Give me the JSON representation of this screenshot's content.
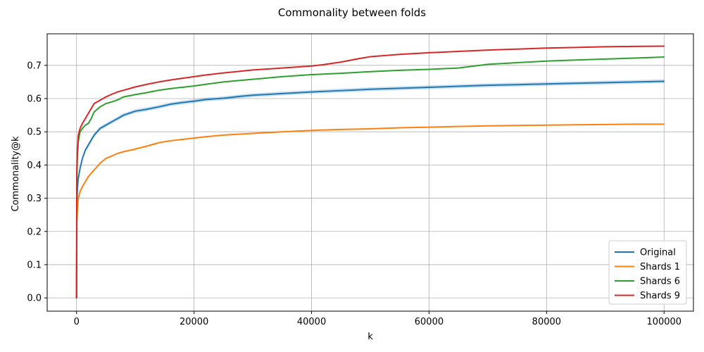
{
  "chart_data": {
    "type": "line",
    "title": "Commonality between folds",
    "xlabel": "k",
    "ylabel": "Commonality@k",
    "xlim": [
      -5000,
      105000
    ],
    "ylim": [
      -0.04,
      0.795
    ],
    "xticks": [
      0,
      20000,
      40000,
      60000,
      80000,
      100000
    ],
    "yticks": [
      0.0,
      0.1,
      0.2,
      0.3,
      0.4,
      0.5,
      0.6,
      0.7
    ],
    "ytick_labels": [
      "0.0",
      "0.1",
      "0.2",
      "0.3",
      "0.4",
      "0.5",
      "0.6",
      "0.7"
    ],
    "grid": true,
    "legend_position": "bottom-right",
    "series": [
      {
        "name": "Original",
        "color": "#1f77b4",
        "band": true,
        "x": [
          0,
          50,
          150,
          300,
          600,
          1000,
          1500,
          2000,
          3000,
          4000,
          5000,
          6000,
          7000,
          8000,
          10000,
          12000,
          14000,
          16000,
          18000,
          20000,
          22000,
          25000,
          28000,
          30000,
          35000,
          40000,
          45000,
          50000,
          55000,
          60000,
          65000,
          70000,
          75000,
          80000,
          85000,
          90000,
          95000,
          100000
        ],
        "y": [
          0,
          0.28,
          0.33,
          0.36,
          0.39,
          0.42,
          0.445,
          0.46,
          0.49,
          0.51,
          0.52,
          0.53,
          0.54,
          0.55,
          0.562,
          0.568,
          0.575,
          0.583,
          0.588,
          0.592,
          0.597,
          0.601,
          0.607,
          0.61,
          0.615,
          0.62,
          0.624,
          0.628,
          0.631,
          0.634,
          0.637,
          0.64,
          0.642,
          0.644,
          0.646,
          0.648,
          0.65,
          0.652
        ]
      },
      {
        "name": "Shards 1",
        "color": "#ff7f0e",
        "band": false,
        "x": [
          0,
          50,
          150,
          300,
          600,
          1000,
          1500,
          2000,
          3000,
          4000,
          5000,
          6000,
          7000,
          8000,
          10000,
          12000,
          14000,
          16000,
          18000,
          20000,
          22000,
          25000,
          30000,
          35000,
          40000,
          45000,
          50000,
          55000,
          60000,
          65000,
          70000,
          75000,
          80000,
          85000,
          90000,
          95000,
          100000
        ],
        "y": [
          0,
          0.23,
          0.27,
          0.3,
          0.32,
          0.335,
          0.35,
          0.365,
          0.385,
          0.405,
          0.42,
          0.427,
          0.435,
          0.44,
          0.448,
          0.457,
          0.467,
          0.473,
          0.477,
          0.481,
          0.485,
          0.49,
          0.495,
          0.5,
          0.504,
          0.507,
          0.509,
          0.512,
          0.514,
          0.516,
          0.518,
          0.519,
          0.52,
          0.521,
          0.522,
          0.523,
          0.523
        ]
      },
      {
        "name": "Shards 6",
        "color": "#2ca02c",
        "band": false,
        "x": [
          0,
          50,
          150,
          300,
          600,
          1000,
          1500,
          2000,
          2500,
          3000,
          4000,
          5000,
          6000,
          7000,
          8000,
          10000,
          12000,
          14000,
          16000,
          18000,
          20000,
          22000,
          25000,
          30000,
          35000,
          40000,
          45000,
          50000,
          55000,
          60000,
          65000,
          70000,
          75000,
          80000,
          85000,
          90000,
          95000,
          100000
        ],
        "y": [
          0,
          0.36,
          0.43,
          0.47,
          0.5,
          0.51,
          0.52,
          0.525,
          0.54,
          0.56,
          0.575,
          0.585,
          0.59,
          0.596,
          0.605,
          0.612,
          0.618,
          0.625,
          0.63,
          0.634,
          0.638,
          0.643,
          0.65,
          0.658,
          0.666,
          0.672,
          0.676,
          0.681,
          0.685,
          0.688,
          0.692,
          0.703,
          0.708,
          0.713,
          0.716,
          0.719,
          0.722,
          0.725
        ]
      },
      {
        "name": "Shards 9",
        "color": "#d62728",
        "band": false,
        "x": [
          0,
          50,
          150,
          300,
          600,
          1000,
          1500,
          2000,
          2500,
          3000,
          4000,
          5000,
          6000,
          7000,
          8000,
          10000,
          12000,
          14000,
          16000,
          18000,
          20000,
          22000,
          25000,
          30000,
          35000,
          40000,
          42000,
          45000,
          48000,
          50000,
          55000,
          60000,
          65000,
          70000,
          75000,
          80000,
          85000,
          90000,
          95000,
          100000
        ],
        "y": [
          0,
          0.38,
          0.45,
          0.49,
          0.51,
          0.525,
          0.54,
          0.555,
          0.57,
          0.585,
          0.595,
          0.605,
          0.613,
          0.62,
          0.625,
          0.635,
          0.643,
          0.65,
          0.656,
          0.661,
          0.666,
          0.671,
          0.677,
          0.686,
          0.692,
          0.698,
          0.702,
          0.71,
          0.72,
          0.726,
          0.733,
          0.738,
          0.742,
          0.746,
          0.749,
          0.752,
          0.754,
          0.756,
          0.757,
          0.758
        ]
      }
    ]
  }
}
